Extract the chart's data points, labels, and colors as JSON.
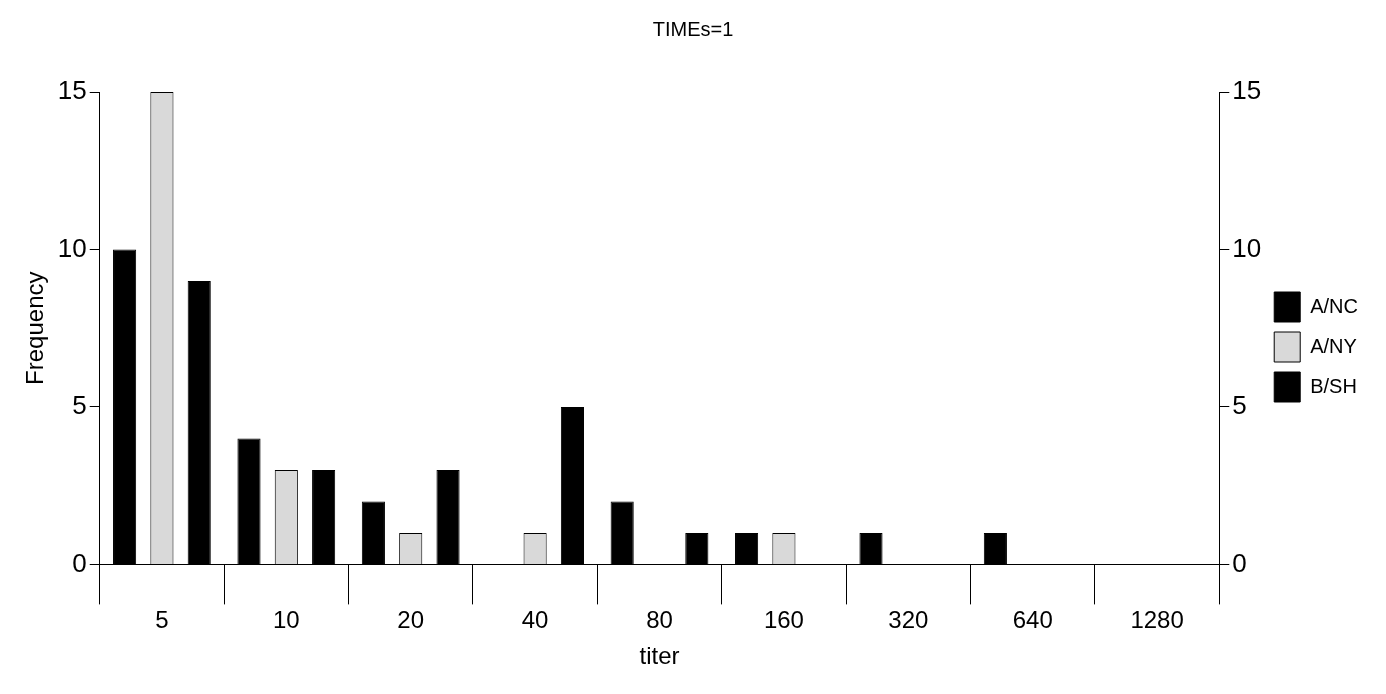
{
  "chart_data": {
    "type": "bar",
    "title": "TIMEs=1",
    "xlabel": "titer",
    "ylabel": "Frequency",
    "categories": [
      "5",
      "10",
      "20",
      "40",
      "80",
      "160",
      "320",
      "640",
      "1280"
    ],
    "series": [
      {
        "name": "A/NC",
        "color": "#000000",
        "values": [
          10,
          4,
          2,
          0,
          2,
          1,
          1,
          1,
          0
        ]
      },
      {
        "name": "A/NY",
        "color": "#d9d9d9",
        "values": [
          15,
          3,
          1,
          1,
          0,
          1,
          0,
          0,
          0
        ]
      },
      {
        "name": "B/SH",
        "color": "#000000",
        "values": [
          9,
          3,
          3,
          5,
          1,
          0,
          0,
          0,
          0
        ]
      }
    ],
    "ylim": [
      0,
      15
    ],
    "yticks": [
      0,
      5,
      10,
      15
    ],
    "y2lim": [
      0,
      15
    ],
    "y2ticks": [
      0,
      5,
      10,
      15
    ],
    "grid": false,
    "legend": "right"
  }
}
